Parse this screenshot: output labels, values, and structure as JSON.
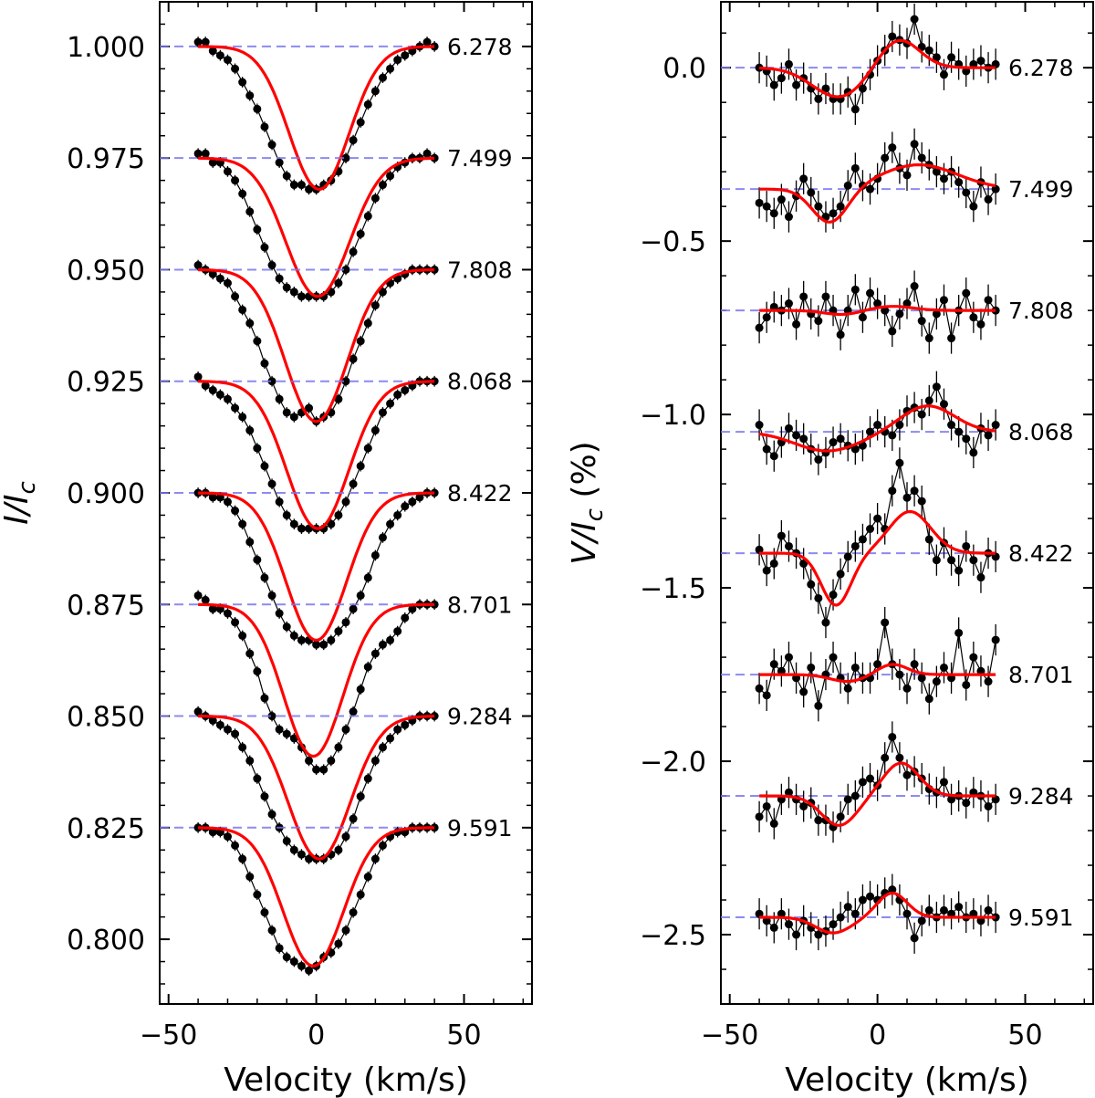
{
  "chart_data": [
    {
      "type": "line",
      "panel": "left",
      "xlabel": "Velocity (km/s)",
      "ylabel": "I/Ic",
      "xlim": [
        -53,
        73
      ],
      "ylim": [
        0.7855,
        1.01
      ],
      "xticks": [
        -50,
        0,
        50
      ],
      "xtick_labels": [
        "−50",
        "0",
        "50"
      ],
      "yticks": [
        1.0,
        0.975,
        0.95,
        0.925,
        0.9,
        0.875,
        0.85,
        0.825,
        0.8
      ],
      "ytick_labels": [
        "1.000",
        "0.975",
        "0.950",
        "0.925",
        "0.900",
        "0.875",
        "0.850",
        "0.825",
        "0.800"
      ],
      "grid": false,
      "observed_color": "#000000",
      "model_color": "#ff0000",
      "baseline_color": "#7777ee",
      "velocity": [
        -40,
        -37.5,
        -35,
        -32.5,
        -30,
        -27.5,
        -25,
        -22.5,
        -20,
        -17.5,
        -15,
        -12.5,
        -10,
        -7.5,
        -5,
        -2.5,
        0,
        2.5,
        5,
        7.5,
        10,
        12.5,
        15,
        17.5,
        20,
        22.5,
        25,
        27.5,
        30,
        32.5,
        35,
        37.5,
        40
      ],
      "series": [
        {
          "label": "6.278",
          "baseline": 1.0,
          "model": {
            "depth": 0.032,
            "center": 1.0,
            "sigma": 10.2
          },
          "observed": [
            1.001,
            1.001,
            0.999,
            0.998,
            0.997,
            0.995,
            0.992,
            0.989,
            0.986,
            0.982,
            0.978,
            0.974,
            0.971,
            0.969,
            0.969,
            0.968,
            0.968,
            0.969,
            0.97,
            0.972,
            0.975,
            0.979,
            0.983,
            0.987,
            0.99,
            0.993,
            0.995,
            0.997,
            0.998,
            0.999,
            1.0,
            1.001,
            1.0
          ]
        },
        {
          "label": "7.499",
          "baseline": 0.975,
          "model": {
            "depth": 0.031,
            "center": 0.5,
            "sigma": 10.8
          },
          "observed": [
            0.976,
            0.976,
            0.974,
            0.974,
            0.972,
            0.97,
            0.967,
            0.963,
            0.959,
            0.955,
            0.951,
            0.948,
            0.946,
            0.945,
            0.944,
            0.944,
            0.944,
            0.944,
            0.945,
            0.947,
            0.95,
            0.954,
            0.958,
            0.962,
            0.966,
            0.969,
            0.971,
            0.973,
            0.974,
            0.975,
            0.975,
            0.976,
            0.975
          ]
        },
        {
          "label": "7.808",
          "baseline": 0.95,
          "model": {
            "depth": 0.034,
            "center": 0.0,
            "sigma": 10.5
          },
          "observed": [
            0.951,
            0.95,
            0.949,
            0.948,
            0.947,
            0.944,
            0.941,
            0.938,
            0.934,
            0.929,
            0.925,
            0.921,
            0.918,
            0.917,
            0.918,
            0.919,
            0.916,
            0.917,
            0.918,
            0.921,
            0.925,
            0.93,
            0.934,
            0.938,
            0.942,
            0.945,
            0.947,
            0.948,
            0.949,
            0.95,
            0.95,
            0.95,
            0.95
          ]
        },
        {
          "label": "8.068",
          "baseline": 0.925,
          "model": {
            "depth": 0.033,
            "center": 0.5,
            "sigma": 10.5
          },
          "observed": [
            0.926,
            0.924,
            0.923,
            0.922,
            0.921,
            0.919,
            0.917,
            0.914,
            0.91,
            0.906,
            0.902,
            0.898,
            0.895,
            0.893,
            0.892,
            0.892,
            0.892,
            0.892,
            0.893,
            0.895,
            0.898,
            0.902,
            0.906,
            0.91,
            0.914,
            0.918,
            0.92,
            0.922,
            0.923,
            0.924,
            0.925,
            0.925,
            0.925
          ]
        },
        {
          "label": "8.422",
          "baseline": 0.9,
          "model": {
            "depth": 0.033,
            "center": 0.0,
            "sigma": 10.2
          },
          "observed": [
            0.9,
            0.9,
            0.899,
            0.899,
            0.898,
            0.896,
            0.893,
            0.889,
            0.885,
            0.881,
            0.877,
            0.873,
            0.87,
            0.868,
            0.867,
            0.867,
            0.866,
            0.866,
            0.867,
            0.869,
            0.871,
            0.874,
            0.877,
            0.881,
            0.886,
            0.89,
            0.893,
            0.895,
            0.897,
            0.898,
            0.899,
            0.9,
            0.9
          ]
        },
        {
          "label": "8.701",
          "baseline": 0.875,
          "model": {
            "depth": 0.034,
            "center": -1.0,
            "sigma": 10.0
          },
          "observed": [
            0.877,
            0.876,
            0.874,
            0.874,
            0.873,
            0.871,
            0.868,
            0.864,
            0.86,
            0.854,
            0.85,
            0.847,
            0.846,
            0.845,
            0.843,
            0.84,
            0.838,
            0.838,
            0.84,
            0.843,
            0.847,
            0.851,
            0.856,
            0.861,
            0.864,
            0.866,
            0.867,
            0.869,
            0.872,
            0.874,
            0.875,
            0.875,
            0.875
          ]
        },
        {
          "label": "9.284",
          "baseline": 0.85,
          "model": {
            "depth": 0.032,
            "center": 1.0,
            "sigma": 10.5
          },
          "observed": [
            0.851,
            0.85,
            0.849,
            0.848,
            0.847,
            0.846,
            0.843,
            0.84,
            0.836,
            0.832,
            0.828,
            0.825,
            0.822,
            0.82,
            0.819,
            0.818,
            0.818,
            0.818,
            0.819,
            0.82,
            0.823,
            0.827,
            0.832,
            0.836,
            0.84,
            0.843,
            0.845,
            0.847,
            0.848,
            0.849,
            0.85,
            0.85,
            0.85
          ]
        },
        {
          "label": "9.591",
          "baseline": 0.825,
          "model": {
            "depth": 0.031,
            "center": -1.0,
            "sigma": 10.2
          },
          "observed": [
            0.825,
            0.825,
            0.824,
            0.824,
            0.823,
            0.821,
            0.818,
            0.814,
            0.81,
            0.806,
            0.802,
            0.798,
            0.796,
            0.795,
            0.794,
            0.793,
            0.794,
            0.796,
            0.797,
            0.799,
            0.802,
            0.806,
            0.81,
            0.814,
            0.818,
            0.821,
            0.823,
            0.824,
            0.824,
            0.825,
            0.825,
            0.825,
            0.825
          ]
        }
      ]
    },
    {
      "type": "line",
      "panel": "right",
      "xlabel": "Velocity (km/s)",
      "ylabel": "V/Ic (%)",
      "xlim": [
        -53,
        73
      ],
      "ylim": [
        -2.7,
        0.19
      ],
      "xticks": [
        -50,
        0,
        50
      ],
      "xtick_labels": [
        "−50",
        "0",
        "50"
      ],
      "yticks": [
        0.0,
        -0.5,
        -1.0,
        -1.5,
        -2.0,
        -2.5
      ],
      "ytick_labels": [
        "0.0",
        "−0.5",
        "−1.0",
        "−1.5",
        "−2.0",
        "−2.5"
      ],
      "grid": false,
      "observed_color": "#000000",
      "model_color": "#ff0000",
      "baseline_color": "#7777ee",
      "velocity": [
        -40,
        -37.5,
        -35,
        -32.5,
        -30,
        -27.5,
        -25,
        -22.5,
        -20,
        -17.5,
        -15,
        -12.5,
        -10,
        -7.5,
        -5,
        -2.5,
        0,
        2.5,
        5,
        7.5,
        10,
        12.5,
        15,
        17.5,
        20,
        22.5,
        25,
        27.5,
        30,
        32.5,
        35,
        37.5,
        40
      ],
      "series": [
        {
          "label": "6.278",
          "baseline": 0.0,
          "model": {
            "neg_amp": -0.085,
            "neg_center": -13,
            "neg_sigma": 9,
            "pos_amp": 0.085,
            "pos_center": 7,
            "pos_sigma": 7
          },
          "observed": [
            0.0,
            -0.01,
            -0.05,
            -0.03,
            0.01,
            -0.05,
            -0.03,
            -0.06,
            -0.09,
            -0.06,
            -0.09,
            -0.09,
            -0.07,
            -0.12,
            -0.06,
            -0.02,
            0.02,
            0.05,
            0.09,
            0.08,
            0.07,
            0.14,
            0.06,
            0.05,
            0.03,
            -0.02,
            0.03,
            0.01,
            -0.01,
            0.01,
            0.02,
            0.0,
            0.01
          ]
        },
        {
          "label": "7.499",
          "baseline": -0.35,
          "model": {
            "neg_amp": -0.1,
            "neg_center": -16,
            "neg_sigma": 6,
            "pos_amp": 0.07,
            "pos_center": 14,
            "pos_sigma": 13
          },
          "observed": [
            -0.39,
            -0.4,
            -0.42,
            -0.38,
            -0.43,
            -0.37,
            -0.32,
            -0.36,
            -0.4,
            -0.43,
            -0.42,
            -0.4,
            -0.34,
            -0.29,
            -0.34,
            -0.35,
            -0.32,
            -0.26,
            -0.23,
            -0.29,
            -0.31,
            -0.22,
            -0.26,
            -0.28,
            -0.3,
            -0.32,
            -0.3,
            -0.33,
            -0.36,
            -0.4,
            -0.33,
            -0.38,
            -0.35
          ]
        },
        {
          "label": "7.808",
          "baseline": -0.7,
          "model": {
            "neg_amp": -0.012,
            "neg_center": -12,
            "neg_sigma": 6,
            "pos_amp": 0.012,
            "pos_center": 5,
            "pos_sigma": 7
          },
          "observed": [
            -0.75,
            -0.72,
            -0.69,
            -0.7,
            -0.68,
            -0.74,
            -0.66,
            -0.71,
            -0.73,
            -0.66,
            -0.7,
            -0.77,
            -0.7,
            -0.64,
            -0.72,
            -0.65,
            -0.68,
            -0.7,
            -0.76,
            -0.71,
            -0.68,
            -0.63,
            -0.73,
            -0.78,
            -0.71,
            -0.67,
            -0.78,
            -0.7,
            -0.65,
            -0.72,
            -0.74,
            -0.67,
            -0.7
          ]
        },
        {
          "label": "8.068",
          "baseline": -1.05,
          "model": {
            "neg_amp": -0.055,
            "neg_center": -17,
            "neg_sigma": 11,
            "pos_amp": 0.075,
            "pos_center": 17,
            "pos_sigma": 9
          },
          "observed": [
            -1.03,
            -1.1,
            -1.12,
            -1.08,
            -1.04,
            -1.06,
            -1.07,
            -1.1,
            -1.13,
            -1.11,
            -1.08,
            -1.07,
            -1.09,
            -1.1,
            -1.09,
            -1.05,
            -1.03,
            -1.05,
            -1.06,
            -1.03,
            -0.99,
            -0.98,
            -1.0,
            -0.96,
            -0.92,
            -0.97,
            -1.03,
            -1.05,
            -1.07,
            -1.11,
            -1.04,
            -1.06,
            -1.03
          ]
        },
        {
          "label": "8.422",
          "baseline": -1.4,
          "model": {
            "neg_amp": -0.15,
            "neg_center": -14,
            "neg_sigma": 5,
            "pos_amp": 0.12,
            "pos_center": 11,
            "pos_sigma": 7
          },
          "observed": [
            -1.39,
            -1.45,
            -1.43,
            -1.35,
            -1.38,
            -1.4,
            -1.43,
            -1.49,
            -1.53,
            -1.6,
            -1.52,
            -1.46,
            -1.41,
            -1.38,
            -1.36,
            -1.33,
            -1.3,
            -1.33,
            -1.22,
            -1.14,
            -1.24,
            -1.22,
            -1.25,
            -1.36,
            -1.42,
            -1.37,
            -1.42,
            -1.45,
            -1.38,
            -1.42,
            -1.47,
            -1.4,
            -1.41
          ]
        },
        {
          "label": "8.701",
          "baseline": -1.75,
          "model": {
            "neg_amp": -0.02,
            "neg_center": -10,
            "neg_sigma": 6,
            "pos_amp": 0.03,
            "pos_center": 5,
            "pos_sigma": 5
          },
          "observed": [
            -1.79,
            -1.81,
            -1.72,
            -1.74,
            -1.7,
            -1.76,
            -1.8,
            -1.73,
            -1.84,
            -1.75,
            -1.7,
            -1.76,
            -1.79,
            -1.73,
            -1.76,
            -1.76,
            -1.72,
            -1.6,
            -1.72,
            -1.75,
            -1.79,
            -1.72,
            -1.76,
            -1.82,
            -1.77,
            -1.73,
            -1.76,
            -1.63,
            -1.78,
            -1.7,
            -1.74,
            -1.77,
            -1.65
          ]
        },
        {
          "label": "9.284",
          "baseline": -2.1,
          "model": {
            "neg_amp": -0.085,
            "neg_center": -13,
            "neg_sigma": 6,
            "pos_amp": 0.095,
            "pos_center": 8,
            "pos_sigma": 6
          },
          "observed": [
            -2.16,
            -2.13,
            -2.18,
            -2.11,
            -2.09,
            -2.11,
            -2.13,
            -2.12,
            -2.17,
            -2.17,
            -2.19,
            -2.16,
            -2.11,
            -2.1,
            -2.06,
            -2.05,
            -2.07,
            -1.99,
            -1.93,
            -1.99,
            -2.04,
            -2.03,
            -2.05,
            -2.08,
            -2.09,
            -2.06,
            -2.11,
            -2.1,
            -2.12,
            -2.09,
            -2.1,
            -2.13,
            -2.11
          ]
        },
        {
          "label": "9.591",
          "baseline": -2.45,
          "model": {
            "neg_amp": -0.045,
            "neg_center": -15,
            "neg_sigma": 6,
            "pos_amp": 0.07,
            "pos_center": 5,
            "pos_sigma": 5
          },
          "observed": [
            -2.44,
            -2.46,
            -2.48,
            -2.44,
            -2.47,
            -2.5,
            -2.46,
            -2.48,
            -2.5,
            -2.49,
            -2.47,
            -2.45,
            -2.42,
            -2.44,
            -2.4,
            -2.39,
            -2.4,
            -2.38,
            -2.37,
            -2.4,
            -2.44,
            -2.51,
            -2.46,
            -2.43,
            -2.45,
            -2.43,
            -2.44,
            -2.42,
            -2.45,
            -2.44,
            -2.46,
            -2.43,
            -2.45
          ]
        }
      ]
    }
  ]
}
